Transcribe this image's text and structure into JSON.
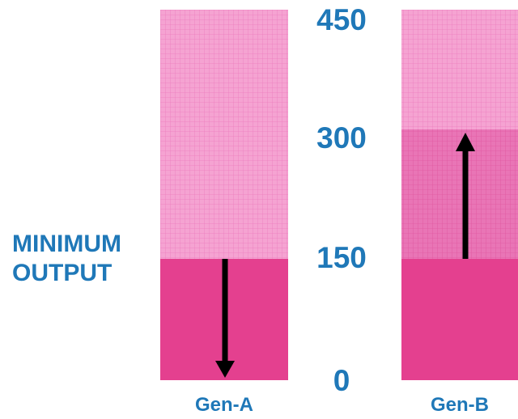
{
  "side_label": {
    "line1": "MINIMUM",
    "line2": "OUTPUT"
  },
  "scale": {
    "labels": [
      "450",
      "300",
      "150",
      "0"
    ],
    "max": 450,
    "min": 0
  },
  "generators": [
    {
      "name": "Gen-A",
      "minimum": 150,
      "target": 0,
      "direction": "down"
    },
    {
      "name": "Gen-B",
      "minimum": 150,
      "target": 300,
      "direction": "up"
    }
  ],
  "colors": {
    "grid_fill": "#f5a3d2",
    "grid_line": "#ec7dbd",
    "solid_fill": "#e4408f",
    "mid_fill": "#e975b6",
    "arrow": "#000000",
    "label": "#1f78b8"
  }
}
